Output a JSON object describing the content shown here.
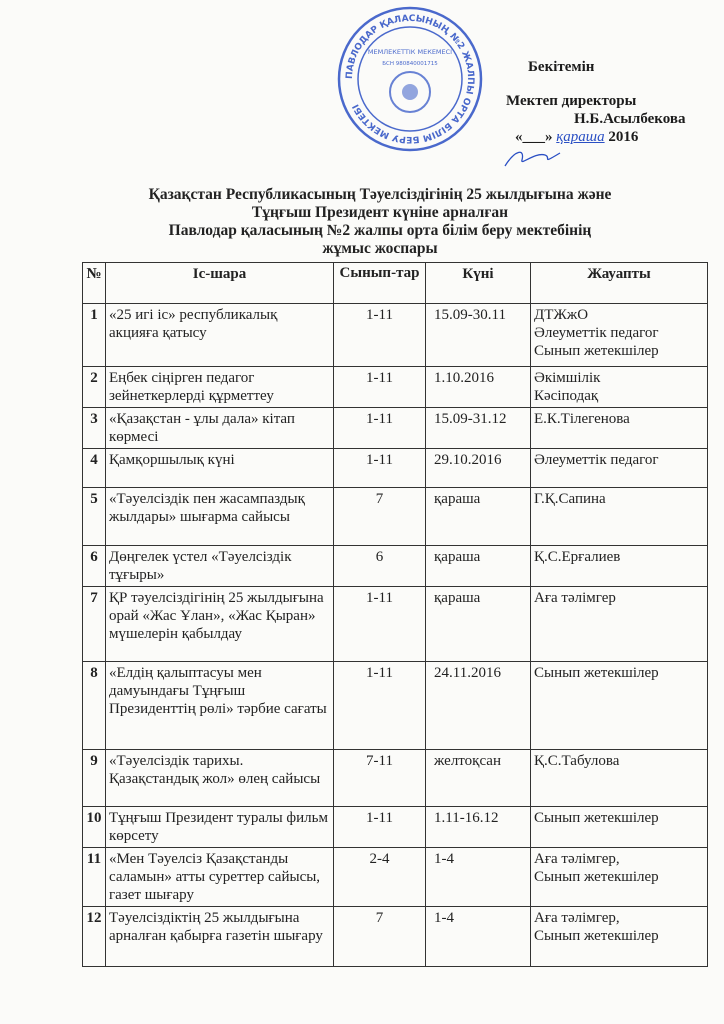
{
  "stamp": {
    "ring_text": "ПАВЛОДАР ҚАЛАСЫНЫҢ №2 ЖАЛПЫ ОРТА БІЛІМ БЕРУ МЕКТЕБІ",
    "inner_text": "МЕМЛЕКЕТТІК МЕКЕМЕСІ",
    "bin": "БСН 980840001715",
    "color": "#2a4fc4"
  },
  "approval": {
    "line1": "Бекітемін",
    "line2": "Мектеп директоры",
    "line3": "Н.Б.Асылбекова",
    "date_prefix": "«___»",
    "date_month": "қараша",
    "date_year": "2016"
  },
  "title": {
    "line1": "Қазақстан Республикасының Тәуелсіздігінің 25 жылдығына және",
    "line2": "Тұңғыш Президент күніне арналған",
    "line3": "Павлодар қаласының №2 жалпы орта білім беру мектебінің",
    "line4": "жұмыс жоспары"
  },
  "table": {
    "headers": [
      "№",
      "Іс-шара",
      "Сынып-тар",
      "Күні",
      "Жауапты"
    ],
    "rows": [
      {
        "n": "1",
        "event": "«25 игі іс» республикалық акцияға қатысу",
        "grades": "1-11",
        "date": "15.09-30.11",
        "resp": "ДТЖжО\nӘлеуметтік педагог\nСынып жетекшілер"
      },
      {
        "n": "2",
        "event": "Еңбек сіңірген педагог зейнеткерлерді құрметтеу",
        "grades": "1-11",
        "date": "1.10.2016",
        "resp": "Әкімшілік\nКәсіподақ"
      },
      {
        "n": "3",
        "event": "«Қазақстан - ұлы дала» кітап көрмесі",
        "grades": "1-11",
        "date": "15.09-31.12",
        "resp": "Е.К.Тілегенова"
      },
      {
        "n": "4",
        "event": "Қамқоршылық күні",
        "grades": "1-11",
        "date": "29.10.2016",
        "resp": "Әлеуметтік педагог"
      },
      {
        "n": "5",
        "event": "«Тәуелсіздік пен жасампаздық жылдары» шығарма сайысы",
        "grades": "7",
        "date": "қараша",
        "resp": "Г.Қ.Сапина"
      },
      {
        "n": "6",
        "event": "Дөңгелек үстел «Тәуелсіздік тұғыры»",
        "grades": "6",
        "date": "қараша",
        "resp": "Қ.С.Ерғалиев"
      },
      {
        "n": "7",
        "event": "ҚР тәуелсіздігінің 25 жылдығына орай «Жас Ұлан», «Жас Қыран» мүшелерін қабылдау",
        "grades": "1-11",
        "date": "қараша",
        "resp": "Аға тәлімгер"
      },
      {
        "n": "8",
        "event": "«Елдің қалыптасуы мен дамуындағы Тұңғыш Президенттің рөлі» тәрбие сағаты",
        "grades": "1-11",
        "date": "24.11.2016",
        "resp": "Сынып жетекшілер"
      },
      {
        "n": "9",
        "event": "«Тәуелсіздік тарихы. Қазақстандық жол» өлең сайысы",
        "grades": "7-11",
        "date": "желтоқсан",
        "resp": "Қ.С.Табулова"
      },
      {
        "n": "10",
        "event": "Тұңғыш Президент туралы фильм көрсету",
        "grades": "1-11",
        "date": "1.11-16.12",
        "resp": "Сынып жетекшілер"
      },
      {
        "n": "11",
        "event": "«Мен Тәуелсіз Қазақстанды саламын» атты суреттер сайысы, газет шығару",
        "grades": "2-4",
        "date": "1-4",
        "resp": "Аға тәлімгер,\nСынып жетекшілер"
      },
      {
        "n": "12",
        "event": "Тәуелсіздіктің 25 жылдығына арналған қабырға газетін шығару",
        "grades": "7",
        "date": "1-4",
        "resp": "Аға тәлімгер,\nСынып жетекшілер"
      }
    ]
  }
}
